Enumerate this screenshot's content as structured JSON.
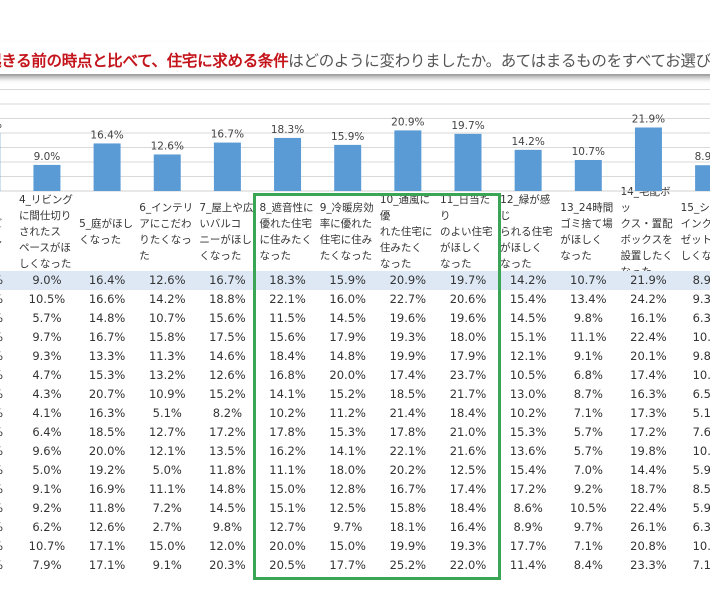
{
  "title": {
    "highlight": "起きる前の時点と比べて、住宅に求める条件",
    "rest": "はどのように変わりましたか。あてはまるものをすべてお選びく"
  },
  "colors": {
    "bar": "#5b9bd5",
    "highlight_row": "#dde8f4",
    "box": "#3aa655",
    "title_red": "#c4141b"
  },
  "chart_data": {
    "type": "bar",
    "ylim": [
      0,
      40
    ],
    "grid": true,
    "categories": [
      "3_…ビし",
      "4_リビングに間仕切りされたスペースがほしくなった",
      "5_庭がほしくなった",
      "6_インテリアにこだわりたくなった",
      "7_屋上や広いバルコニーがほしくなった",
      "8_遮音性に優れた住宅に住みたくなった",
      "9_冷暖房効率に優れた住宅に住みたくなった",
      "10_通風に優れた住宅に住みたくなった",
      "11_日当たりのよい住宅がほしくなった",
      "12_緑が感じられる住宅がほしくなった",
      "13_24時間ゴミ捨て場がほしくなった",
      "14_宅配ボックス・置配ボックスを設置したくなった",
      "15_シ…"
    ],
    "values": [
      20.0,
      9.0,
      16.4,
      12.6,
      16.7,
      18.3,
      15.9,
      20.9,
      19.7,
      14.2,
      10.7,
      21.9,
      8.9
    ],
    "data_labels": [
      "%",
      "9.0%",
      "16.4%",
      "12.6%",
      "16.7%",
      "18.3%",
      "15.9%",
      "20.9%",
      "19.7%",
      "14.2%",
      "10.7%",
      "21.9%",
      "8.9"
    ]
  },
  "table": {
    "headers": [
      "ビ\nし",
      "4_リビング\nに間仕切り\nされたス\nペースがほ\nしくなった",
      "5_庭がほし\nくなった",
      "6_インテリ\nアにこだわ\nりたくなっ\nた",
      "7_屋上や広\nいバルコ\nニーがほし\nくなった",
      "8_遮音性に\n優れた住宅\nに住みたく\nなった",
      "9_冷暖房効\n率に優れた\n住宅に住み\nたくなった",
      "10_通風に優\nれた住宅に\n住みたく\nなった",
      "11_日当たり\nのよい住宅\nがほしく\nなった",
      "12_緑が感じ\nられる住宅\nがほしく\nなった",
      "13_24時間\nゴミ捨て場\nがほしく\nなった",
      "14_宅配ボッ\nクス・置配\nボックスを\n設置したく\nなった",
      "15_シ\nインク\nゼット\nしくな"
    ],
    "rows": [
      [
        "%",
        "9.0%",
        "16.4%",
        "12.6%",
        "16.7%",
        "18.3%",
        "15.9%",
        "20.9%",
        "19.7%",
        "14.2%",
        "10.7%",
        "21.9%",
        "8.9"
      ],
      [
        "%",
        "10.5%",
        "16.6%",
        "14.2%",
        "18.8%",
        "22.1%",
        "16.0%",
        "22.7%",
        "20.6%",
        "15.4%",
        "13.4%",
        "24.2%",
        "9.3"
      ],
      [
        "%",
        "5.7%",
        "14.8%",
        "10.7%",
        "15.6%",
        "11.5%",
        "14.5%",
        "19.6%",
        "19.6%",
        "14.5%",
        "9.8%",
        "16.1%",
        "6.3"
      ],
      [
        "%",
        "9.7%",
        "16.7%",
        "15.8%",
        "17.5%",
        "15.6%",
        "17.9%",
        "19.3%",
        "18.0%",
        "15.1%",
        "11.1%",
        "22.4%",
        "10.5"
      ],
      [
        "%",
        "9.3%",
        "13.3%",
        "11.3%",
        "14.6%",
        "18.4%",
        "14.8%",
        "19.9%",
        "17.9%",
        "12.1%",
        "9.1%",
        "20.1%",
        "9.8"
      ],
      [
        "%",
        "4.7%",
        "15.3%",
        "13.2%",
        "12.6%",
        "16.8%",
        "20.0%",
        "17.4%",
        "23.7%",
        "10.5%",
        "6.8%",
        "17.4%",
        "10."
      ],
      [
        "%",
        "4.3%",
        "20.7%",
        "10.9%",
        "15.2%",
        "14.1%",
        "15.2%",
        "18.5%",
        "21.7%",
        "13.0%",
        "8.7%",
        "16.3%",
        "6.5"
      ],
      [
        "%",
        "4.1%",
        "16.3%",
        "5.1%",
        "8.2%",
        "10.2%",
        "11.2%",
        "21.4%",
        "18.4%",
        "10.2%",
        "7.1%",
        "17.3%",
        "5.1"
      ],
      [
        "%",
        "6.4%",
        "18.5%",
        "12.7%",
        "17.2%",
        "17.8%",
        "15.3%",
        "17.8%",
        "21.0%",
        "15.3%",
        "5.7%",
        "17.2%",
        "7.6"
      ],
      [
        "%",
        "9.6%",
        "20.0%",
        "12.1%",
        "13.5%",
        "16.2%",
        "14.1%",
        "22.1%",
        "21.6%",
        "13.6%",
        "5.7%",
        "19.8%",
        "10."
      ],
      [
        "%",
        "5.0%",
        "19.2%",
        "5.0%",
        "11.8%",
        "11.1%",
        "18.0%",
        "20.2%",
        "12.5%",
        "15.4%",
        "7.0%",
        "14.4%",
        "5.9"
      ],
      [
        "%",
        "9.1%",
        "16.9%",
        "11.1%",
        "14.8%",
        "15.0%",
        "12.8%",
        "16.7%",
        "17.4%",
        "17.2%",
        "9.2%",
        "18.7%",
        "8.5"
      ],
      [
        "%",
        "9.2%",
        "11.8%",
        "7.2%",
        "14.5%",
        "15.1%",
        "12.5%",
        "15.8%",
        "18.4%",
        "8.6%",
        "10.5%",
        "22.4%",
        "5.9"
      ],
      [
        "%",
        "6.2%",
        "12.6%",
        "2.7%",
        "9.8%",
        "12.7%",
        "9.7%",
        "18.1%",
        "16.4%",
        "8.9%",
        "9.7%",
        "26.1%",
        "6.3"
      ],
      [
        "%",
        "10.7%",
        "17.1%",
        "15.0%",
        "12.0%",
        "20.0%",
        "15.0%",
        "19.9%",
        "19.3%",
        "17.7%",
        "7.1%",
        "20.8%",
        "10."
      ],
      [
        "%",
        "7.9%",
        "17.1%",
        "9.1%",
        "20.3%",
        "20.5%",
        "17.7%",
        "25.2%",
        "22.0%",
        "11.4%",
        "8.4%",
        "23.3%",
        "7.1"
      ]
    ]
  }
}
